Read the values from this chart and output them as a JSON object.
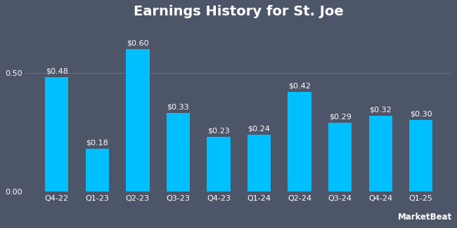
{
  "title": "Earnings History for St. Joe",
  "categories": [
    "Q4-22",
    "Q1-23",
    "Q2-23",
    "Q3-23",
    "Q4-23",
    "Q1-24",
    "Q2-24",
    "Q3-24",
    "Q4-24",
    "Q1-25"
  ],
  "values": [
    0.48,
    0.18,
    0.6,
    0.33,
    0.23,
    0.24,
    0.42,
    0.29,
    0.32,
    0.3
  ],
  "labels": [
    "$0.48",
    "$0.18",
    "$0.60",
    "$0.33",
    "$0.23",
    "$0.24",
    "$0.42",
    "$0.29",
    "$0.32",
    "$0.30"
  ],
  "bar_color": "#00BFFF",
  "background_color": "#4d5568",
  "plot_bg_color": "#4d5568",
  "grid_color": "#666b78",
  "text_color": "#ffffff",
  "title_fontsize": 14,
  "label_fontsize": 8,
  "tick_fontsize": 8,
  "ylim": [
    0,
    0.7
  ],
  "yticks": [
    0.0,
    0.5
  ],
  "watermark": "MarketBeat"
}
